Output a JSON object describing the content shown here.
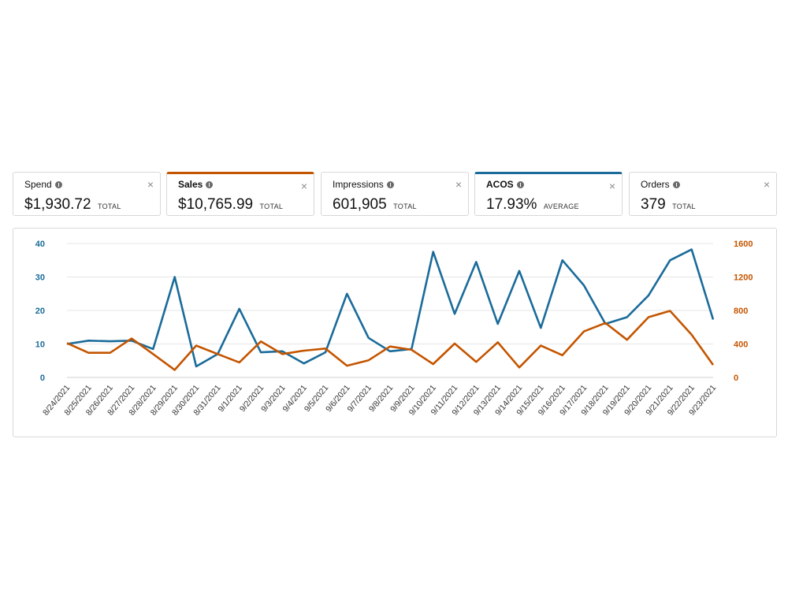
{
  "metrics": [
    {
      "label": "Spend",
      "value": "$1,930.72",
      "suffix": "TOTAL",
      "close": "×",
      "selected": false
    },
    {
      "label": "Sales",
      "value": "$10,765.99",
      "suffix": "TOTAL",
      "close": "×",
      "selected": true,
      "color": "#c45500"
    },
    {
      "label": "Impressions",
      "value": "601,905",
      "suffix": "TOTAL",
      "close": "×",
      "selected": false
    },
    {
      "label": "ACOS",
      "value": "17.93%",
      "suffix": "AVERAGE",
      "close": "×",
      "selected": true,
      "color": "#1a6b9a"
    },
    {
      "label": "Orders",
      "value": "379",
      "suffix": "TOTAL",
      "close": "×",
      "selected": false
    }
  ],
  "chart_data": {
    "type": "line",
    "categories": [
      "8/24/2021",
      "8/25/2021",
      "8/26/2021",
      "8/27/2021",
      "8/28/2021",
      "8/29/2021",
      "8/30/2021",
      "8/31/2021",
      "9/1/2021",
      "9/2/2021",
      "9/3/2021",
      "9/4/2021",
      "9/5/2021",
      "9/6/2021",
      "9/7/2021",
      "9/8/2021",
      "9/9/2021",
      "9/10/2021",
      "9/11/2021",
      "9/12/2021",
      "9/13/2021",
      "9/14/2021",
      "9/15/2021",
      "9/16/2021",
      "9/17/2021",
      "9/18/2021",
      "9/19/2021",
      "9/20/2021",
      "9/21/2021",
      "9/22/2021",
      "9/23/2021"
    ],
    "series": [
      {
        "name": "ACOS",
        "axis": "left",
        "color": "#1a6b9a",
        "values": [
          10,
          11,
          10.8,
          11,
          8.5,
          30,
          3.3,
          7,
          20.5,
          7.5,
          7.8,
          4.2,
          7.5,
          25,
          11.8,
          7.8,
          8.5,
          37.5,
          19,
          34.5,
          16,
          31.8,
          14.8,
          35,
          27.5,
          16,
          18,
          24.5,
          35,
          38.2,
          17.3
        ]
      },
      {
        "name": "Sales",
        "axis": "right",
        "color": "#c45500",
        "values": [
          410,
          295,
          295,
          465,
          280,
          90,
          380,
          280,
          180,
          430,
          280,
          320,
          345,
          140,
          205,
          370,
          330,
          160,
          405,
          185,
          420,
          120,
          380,
          265,
          550,
          650,
          450,
          720,
          795,
          510,
          150
        ]
      }
    ],
    "left_axis": {
      "ylim": [
        0,
        40
      ],
      "ticks": [
        "40",
        "30",
        "20",
        "10",
        "0"
      ]
    },
    "right_axis": {
      "ylim": [
        0,
        1600
      ],
      "ticks": [
        "1600",
        "1200",
        "800",
        "400",
        "0"
      ]
    },
    "grid": true
  }
}
